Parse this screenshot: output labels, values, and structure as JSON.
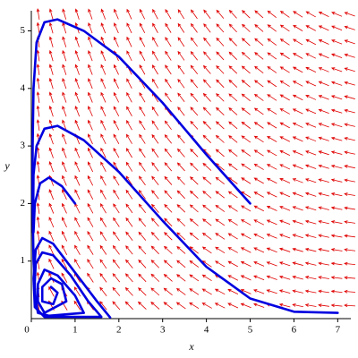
{
  "chart_data": {
    "type": "phase",
    "xlabel": "x",
    "ylabel": "y",
    "xlim": [
      0,
      7.3
    ],
    "ylim": [
      0,
      5.35
    ],
    "xticks": [
      0,
      1,
      2,
      3,
      4,
      5,
      6,
      7
    ],
    "yticks": [
      1,
      2,
      3,
      4,
      5
    ],
    "field_color": "#e00000",
    "series": [
      {
        "color": "#0000e0",
        "x": [
          5,
          4,
          3,
          2,
          1.2,
          0.6,
          0.3,
          0.12,
          0.05,
          0.03,
          0.03,
          0.05,
          0.1
        ],
        "y": [
          2,
          2.85,
          3.75,
          4.55,
          5.0,
          5.2,
          5.15,
          4.8,
          4.0,
          3.0,
          2.0,
          1.0,
          0.3
        ]
      },
      {
        "color": "#0000e0",
        "x": [
          7,
          6,
          5,
          4,
          3,
          2,
          1.2,
          0.6,
          0.3,
          0.12,
          0.05,
          0.04
        ],
        "y": [
          0.1,
          0.12,
          0.35,
          0.9,
          1.7,
          2.55,
          3.1,
          3.35,
          3.3,
          3.0,
          2.5,
          1.5
        ]
      },
      {
        "color": "#0000e0",
        "x": [
          1,
          0.7,
          0.4,
          0.2,
          0.08,
          0.05
        ],
        "y": [
          2,
          2.3,
          2.45,
          2.35,
          2.0,
          1.5
        ]
      },
      {
        "color": "#0000e0",
        "x": [
          1.8,
          1.5,
          1,
          0.5,
          0.25,
          0.1,
          0.05,
          0.08,
          0.3,
          1.6,
          1.3,
          0.9,
          0.5,
          0.25,
          0.1,
          0.07,
          0.15,
          0.4,
          1.2,
          1,
          0.6,
          0.3,
          0.15,
          0.15,
          0.3,
          0.8,
          0.7,
          0.45,
          0.25,
          0.25,
          0.5,
          0.6,
          0.45
        ],
        "y": [
          0.02,
          0.3,
          0.8,
          1.3,
          1.4,
          1.2,
          0.7,
          0.2,
          0.03,
          0.03,
          0.3,
          0.75,
          1.1,
          1.15,
          0.95,
          0.5,
          0.1,
          0.05,
          0.1,
          0.4,
          0.75,
          0.85,
          0.6,
          0.3,
          0.1,
          0.3,
          0.6,
          0.7,
          0.55,
          0.3,
          0.25,
          0.45,
          0.55
        ]
      }
    ]
  }
}
